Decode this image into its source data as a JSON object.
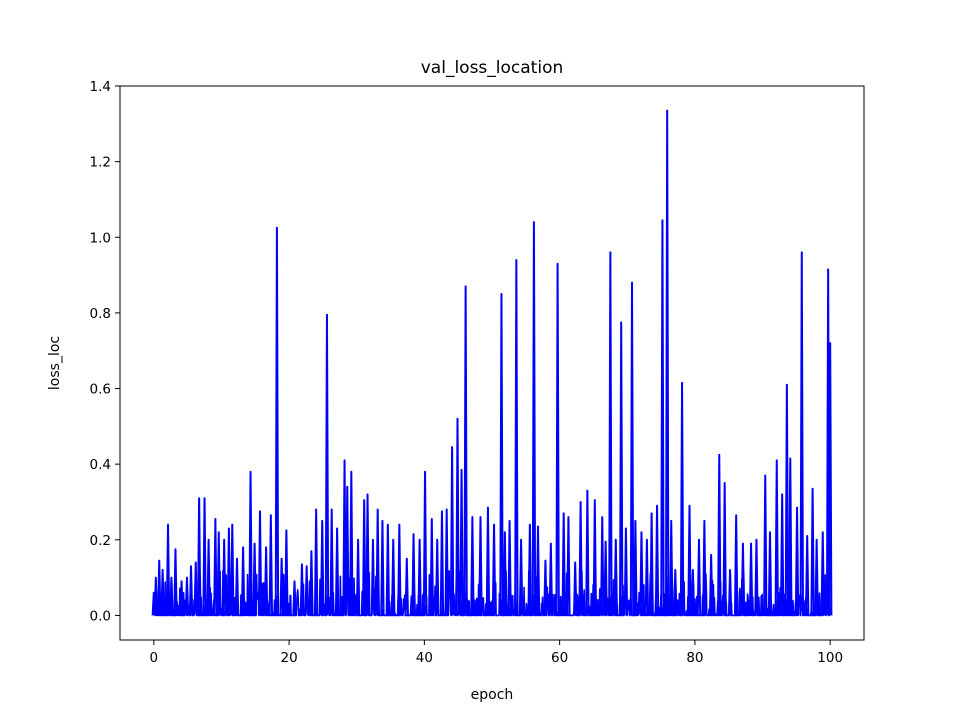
{
  "chart_data": {
    "type": "line",
    "title": "val_loss_location",
    "xlabel": "epoch",
    "ylabel": "loss_loc",
    "xlim": [
      -5,
      105
    ],
    "ylim": [
      -0.065,
      1.4
    ],
    "x_ticks": [
      0,
      20,
      40,
      60,
      80,
      100
    ],
    "x_tick_labels": [
      "0",
      "20",
      "40",
      "60",
      "80",
      "100"
    ],
    "y_ticks": [
      0.0,
      0.2,
      0.4,
      0.6,
      0.8,
      1.0,
      1.2,
      1.4
    ],
    "y_tick_labels": [
      "0.0",
      "0.2",
      "0.4",
      "0.6",
      "0.8",
      "1.0",
      "1.2",
      "1.4"
    ],
    "grid": false,
    "series": [
      {
        "color": "#0000ff",
        "x": [
          0.0,
          0.3,
          0.8,
          1.3,
          2.1,
          2.6,
          3.2,
          4.1,
          4.9,
          5.5,
          6.2,
          6.7,
          7.5,
          8.1,
          9.1,
          9.6,
          10.4,
          11.1,
          11.6,
          12.3,
          13.2,
          14.3,
          14.9,
          15.7,
          16.6,
          17.3,
          18.2,
          18.9,
          19.6,
          20.8,
          21.9,
          22.6,
          23.3,
          24.0,
          24.9,
          25.6,
          26.3,
          27.1,
          28.2,
          28.6,
          29.2,
          30.2,
          31.1,
          31.6,
          32.4,
          33.1,
          33.8,
          34.6,
          35.4,
          36.3,
          37.4,
          38.4,
          39.3,
          40.1,
          41.1,
          41.9,
          42.6,
          43.3,
          44.1,
          44.9,
          45.5,
          46.1,
          47.1,
          48.3,
          49.4,
          50.3,
          51.4,
          51.9,
          52.6,
          53.6,
          54.3,
          55.6,
          56.2,
          56.8,
          57.9,
          58.7,
          59.7,
          60.6,
          61.3,
          62.3,
          63.1,
          64.1,
          65.2,
          66.3,
          66.8,
          67.5,
          68.3,
          69.1,
          69.8,
          70.7,
          71.2,
          72.1,
          72.9,
          73.6,
          74.4,
          75.2,
          75.9,
          76.5,
          77.1,
          78.1,
          79.2,
          79.7,
          80.6,
          81.4,
          82.4,
          83.6,
          84.4,
          85.2,
          86.1,
          87.1,
          88.3,
          89.1,
          90.4,
          91.1,
          92.1,
          92.9,
          93.6,
          94.1,
          95.1,
          95.8,
          96.6,
          97.4,
          98.0,
          98.9,
          99.7,
          100.0
        ],
        "y": [
          0.06,
          0.1,
          0.145,
          0.12,
          0.24,
          0.1,
          0.175,
          0.09,
          0.1,
          0.13,
          0.14,
          0.31,
          0.31,
          0.2,
          0.255,
          0.22,
          0.2,
          0.23,
          0.24,
          0.15,
          0.18,
          0.38,
          0.19,
          0.275,
          0.18,
          0.265,
          1.025,
          0.15,
          0.225,
          0.09,
          0.135,
          0.13,
          0.17,
          0.28,
          0.25,
          0.795,
          0.28,
          0.23,
          0.41,
          0.34,
          0.38,
          0.2,
          0.305,
          0.32,
          0.2,
          0.28,
          0.25,
          0.24,
          0.2,
          0.24,
          0.15,
          0.215,
          0.2,
          0.38,
          0.255,
          0.2,
          0.275,
          0.28,
          0.445,
          0.52,
          0.385,
          0.87,
          0.26,
          0.26,
          0.285,
          0.24,
          0.85,
          0.22,
          0.25,
          0.94,
          0.2,
          0.24,
          1.04,
          0.235,
          0.145,
          0.19,
          0.93,
          0.27,
          0.26,
          0.14,
          0.3,
          0.33,
          0.305,
          0.26,
          0.195,
          0.96,
          0.2,
          0.775,
          0.23,
          0.88,
          0.25,
          0.22,
          0.2,
          0.27,
          0.29,
          1.045,
          1.335,
          0.25,
          0.12,
          0.615,
          0.29,
          0.12,
          0.2,
          0.25,
          0.16,
          0.425,
          0.35,
          0.12,
          0.265,
          0.19,
          0.19,
          0.2,
          0.37,
          0.22,
          0.41,
          0.32,
          0.61,
          0.415,
          0.285,
          0.96,
          0.21,
          0.335,
          0.2,
          0.22,
          0.915,
          0.72
        ]
      }
    ]
  }
}
